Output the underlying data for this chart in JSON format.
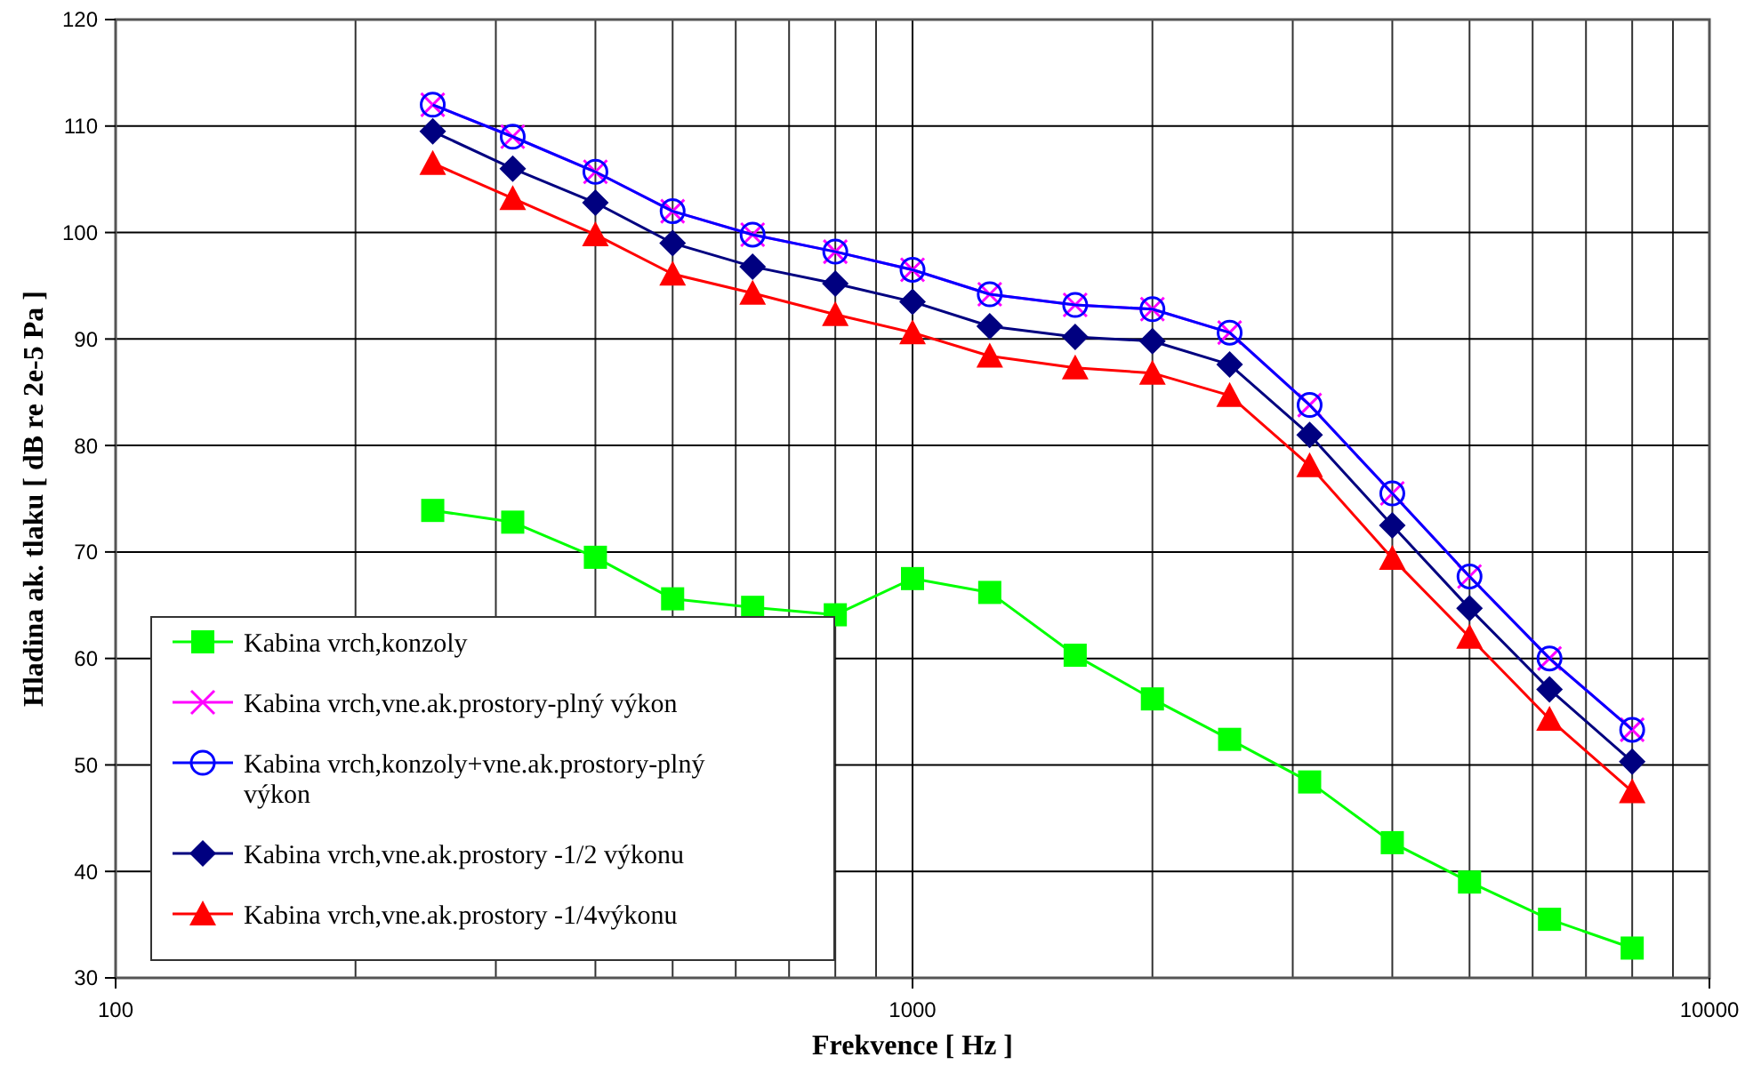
{
  "chart_data": {
    "type": "line",
    "xlabel": "Frekvence [ Hz ]",
    "ylabel": "Hladina ak. tlaku [ dB re 2e-5 Pa ]",
    "x": [
      250,
      315,
      400,
      500,
      630,
      800,
      1000,
      1250,
      1600,
      2000,
      2500,
      3150,
      4000,
      5000,
      6300,
      8000
    ],
    "log": "x",
    "xlim": [
      100,
      10000
    ],
    "xticks": [
      100,
      1000,
      10000
    ],
    "ylim": [
      30,
      120
    ],
    "yticks": [
      30,
      40,
      50,
      60,
      70,
      80,
      90,
      100,
      110,
      120
    ],
    "grid": true,
    "legend": "bottom left",
    "series": [
      {
        "name": "Kabina vrch,konzoly",
        "color": "#00ff00",
        "marker": "square",
        "values": [
          73.9,
          72.8,
          69.5,
          65.6,
          64.8,
          64.1,
          67.5,
          66.2,
          60.3,
          56.2,
          52.4,
          48.4,
          42.7,
          39,
          35.5,
          32.8
        ]
      },
      {
        "name": "Kabina vrch,vne.ak.prostory-plný výkon",
        "color": "#ff00ff",
        "marker": "cross",
        "values": [
          112,
          109,
          105.7,
          102,
          99.8,
          98.2,
          96.5,
          94.2,
          93.2,
          92.8,
          90.6,
          83.8,
          75.5,
          67.7,
          60,
          53.3
        ]
      },
      {
        "name": "Kabina vrch,konzoly+vne.ak.prostory-plný výkon",
        "color": "#0000ff",
        "marker": "circle",
        "values": [
          112,
          109,
          105.7,
          102,
          99.8,
          98.2,
          96.5,
          94.2,
          93.2,
          92.8,
          90.6,
          83.8,
          75.5,
          67.7,
          60,
          53.3
        ]
      },
      {
        "name": "Kabina vrch,vne.ak.prostory -1/2 výkonu",
        "color": "#000080",
        "marker": "diamond",
        "values": [
          109.5,
          106,
          102.8,
          99,
          96.8,
          95.2,
          93.5,
          91.2,
          90.2,
          89.8,
          87.6,
          81,
          72.5,
          64.7,
          57.1,
          50.3
        ]
      },
      {
        "name": "Kabina vrch,vne.ak.prostory -1/4výkonu",
        "color": "#ff0000",
        "marker": "triangle",
        "values": [
          106.5,
          103.2,
          99.8,
          96.1,
          94.3,
          92.3,
          90.6,
          88.4,
          87.3,
          86.8,
          84.7,
          78.1,
          69.4,
          62,
          54.3,
          47.5
        ]
      }
    ]
  }
}
